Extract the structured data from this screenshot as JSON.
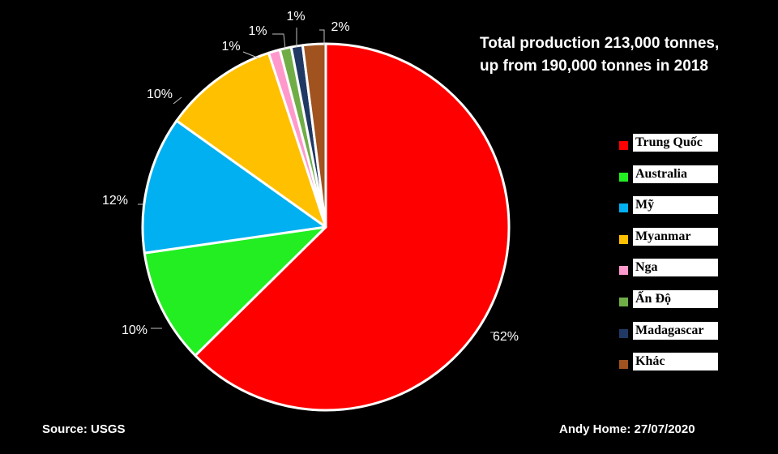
{
  "chart_data": {
    "type": "pie",
    "title": "",
    "annotation_lines": [
      "Total production 213,000 tonnes,",
      "up from 190,000 tonnes in 2018"
    ],
    "categories": [
      "Trung Quốc",
      "Australia",
      "Mỹ",
      "Myanmar",
      "Nga",
      "Ấn Độ",
      "Madagascar",
      "Khác"
    ],
    "values": [
      62,
      10,
      12,
      10,
      1,
      1,
      1,
      2
    ],
    "value_labels": [
      "62%",
      "10%",
      "12%",
      "10%",
      "1%",
      "",
      "1%",
      "2%"
    ],
    "colors": [
      "#ff0000",
      "#22ee22",
      "#00b0f0",
      "#ffc000",
      "#ff99cc",
      "#70ad47",
      "#203864",
      "#a0521f"
    ],
    "legend_position": "right",
    "start_angle": "top, clockwise"
  },
  "footer": {
    "source": "Source: USGS",
    "credit": "Andy Home: 27/07/2020"
  }
}
